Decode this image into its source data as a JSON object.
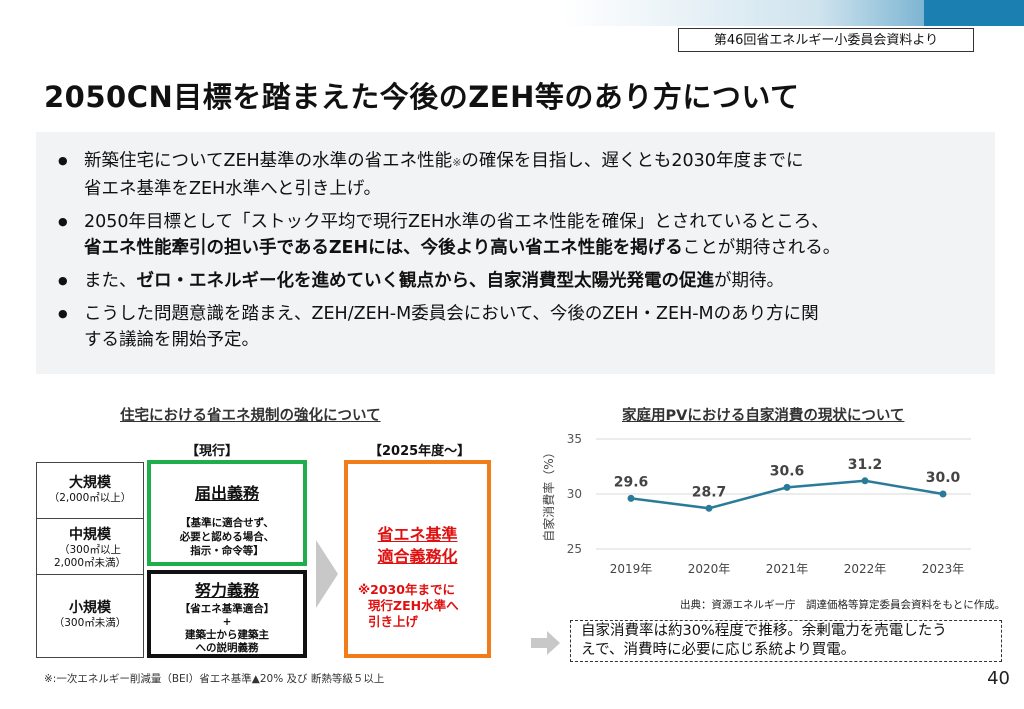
{
  "source_label": "第46回省エネルギー小委員会資料より",
  "title": "2050CN目標を踏まえた今後のZEH等のあり方について",
  "bullets": [
    {
      "a": "新築住宅についてZEH基準の水準の省エネ性能",
      "note": "※",
      "b": "の確保を目指し、遅くとも2030年度までに",
      "c": "省エネ基準をZEH水準へと引き上げ。"
    },
    {
      "a": "2050年目標として「ストック平均で現行ZEH水準の省エネ性能を確保」とされているところ、",
      "bold": "省エネ性能牽引の担い手であるZEHには、今後より高い省エネ性能を掲げる",
      "c": "ことが期待される。"
    },
    {
      "a": "また、",
      "bold": "ゼロ・エネルギー化を進めていく観点から、自家消費型太陽光発電の促進",
      "c": "が期待。"
    },
    {
      "a": "こうした問題意識を踏まえ、ZEH/ZEH-M委員会において、今後のZEH・ZEH-Mのあり方に関",
      "c": "する議論を開始予定。"
    }
  ],
  "left_section": {
    "title": "住宅における省エネ規制の強化について",
    "col_current": "【現行】",
    "col_future": "【2025年度～】",
    "rows": [
      {
        "name": "大規模",
        "sub": "（2,000㎡以上）"
      },
      {
        "name": "中規模",
        "sub1": "（300㎡以上",
        "sub2": "2,000㎡未満）"
      },
      {
        "name": "小規模",
        "sub": "（300㎡未満）"
      }
    ],
    "green_box": {
      "head": "届出義務",
      "l1": "【基準に適合せず、",
      "l2": "必要と認める場合、",
      "l3": "指示・命令等】"
    },
    "black_box": {
      "head": "努力義務",
      "l1": "【省エネ基準適合】",
      "l2": "+",
      "l3": "建築士から建築主",
      "l4": "への説明義務"
    },
    "orange_box": {
      "head1": "省エネ基準",
      "head2": "適合義務化",
      "l1": "※2030年までに",
      "l2": "現行ZEH水準へ",
      "l3": "引き上げ"
    },
    "footnote": "※:一次エネルギー削減量（BEI）省エネ基準▲20% 及び 断熱等級５以上"
  },
  "right_section": {
    "title": "家庭用PVにおける自家消費の現状について",
    "citation": "出典：資源エネルギー庁　調達価格等算定委員会資料をもとに作成。",
    "summary_l1": "自家消費率は約30%程度で推移。余剰電力を売電したう",
    "summary_l2": "えで、消費時に必要に応じ系統より買電。"
  },
  "chart_data": {
    "type": "line",
    "title": "家庭用PVにおける自家消費の現状について",
    "ylabel": "自家消費率（%）",
    "xlabel": "",
    "categories": [
      "2019年",
      "2020年",
      "2021年",
      "2022年",
      "2023年"
    ],
    "values": [
      29.6,
      28.7,
      30.6,
      31.2,
      30.0
    ],
    "labels": [
      "29.6",
      "28.7",
      "30.6",
      "31.2",
      "30.0"
    ],
    "ylim": [
      25,
      35
    ],
    "yticks": [
      "25",
      "30",
      "35"
    ],
    "grid": true,
    "line_color": "#2a7a9a"
  },
  "page_number": "40"
}
